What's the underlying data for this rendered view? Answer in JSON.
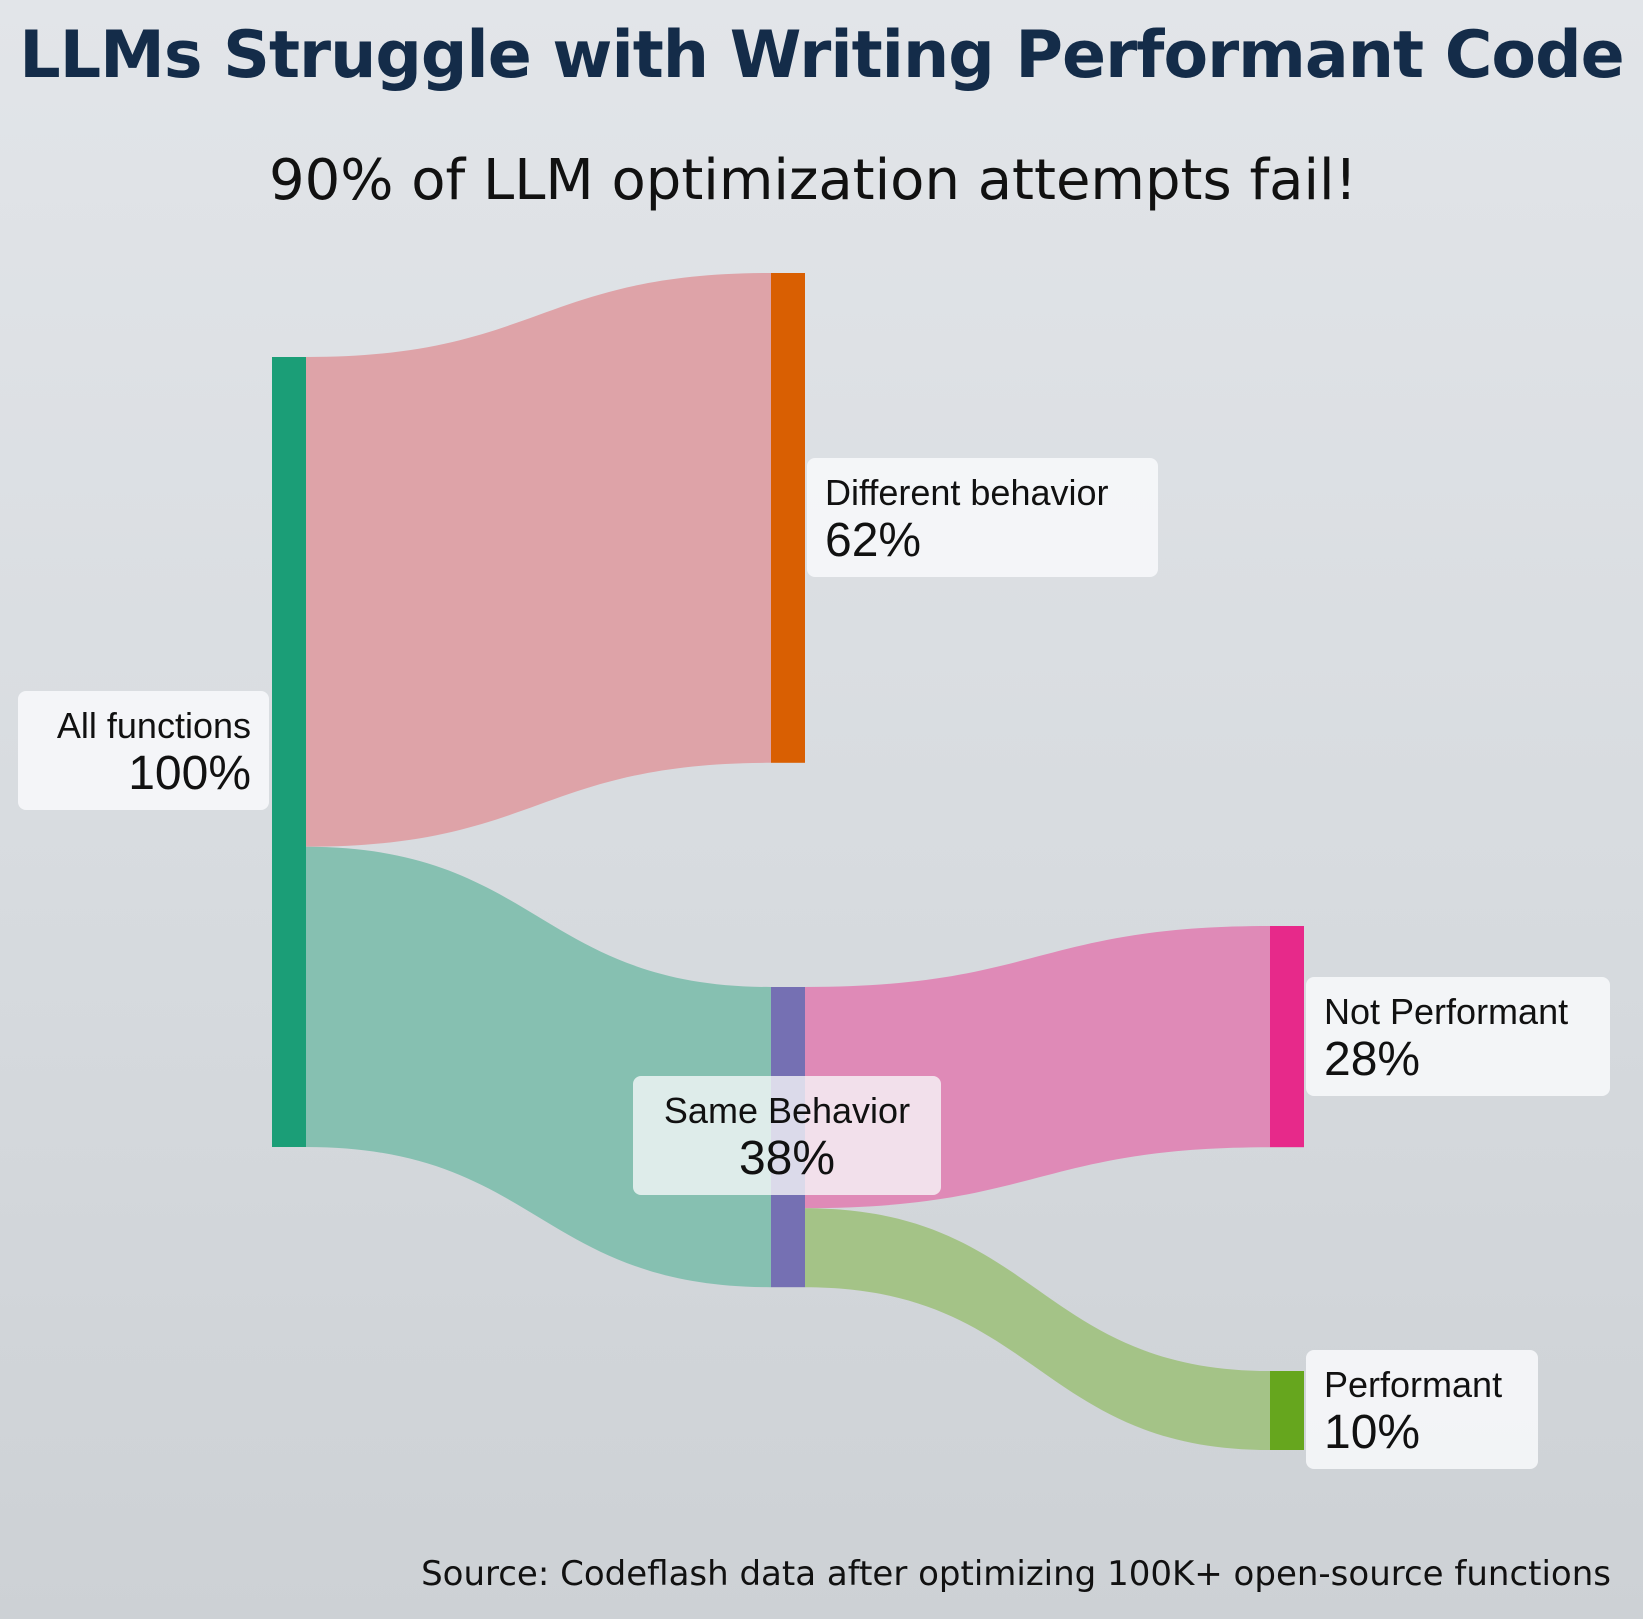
{
  "title": "LLMs Struggle with Writing Performant Code",
  "subtitle": "90% of LLM optimization attempts fail!",
  "source": "Source: Codeflash data after optimizing 100K+ open-source functions",
  "colors": {
    "title": "#142c49",
    "all_functions": "#1b9e77",
    "different_behavior": "#d95f02",
    "same_behavior": "#7570b3",
    "not_performant": "#e7298a",
    "performant": "#66a61e",
    "flow_different": "#dea3a8",
    "flow_same": "#86c0b1",
    "flow_not_performant": "#df8ab7",
    "flow_performant": "#a4c387"
  },
  "chart_data": {
    "type": "sankey",
    "nodes": [
      {
        "id": "all",
        "name": "All functions",
        "value_label": "100%",
        "value": 100
      },
      {
        "id": "diff",
        "name": "Different behavior",
        "value_label": "62%",
        "value": 62
      },
      {
        "id": "same",
        "name": "Same Behavior",
        "value_label": "38%",
        "value": 38
      },
      {
        "id": "notperf",
        "name": "Not Performant",
        "value_label": "28%",
        "value": 28
      },
      {
        "id": "perf",
        "name": "Performant",
        "value_label": "10%",
        "value": 10
      }
    ],
    "links": [
      {
        "source": "all",
        "target": "diff",
        "value": 62
      },
      {
        "source": "all",
        "target": "same",
        "value": 38
      },
      {
        "source": "same",
        "target": "notperf",
        "value": 28
      },
      {
        "source": "same",
        "target": "perf",
        "value": 10
      }
    ]
  }
}
